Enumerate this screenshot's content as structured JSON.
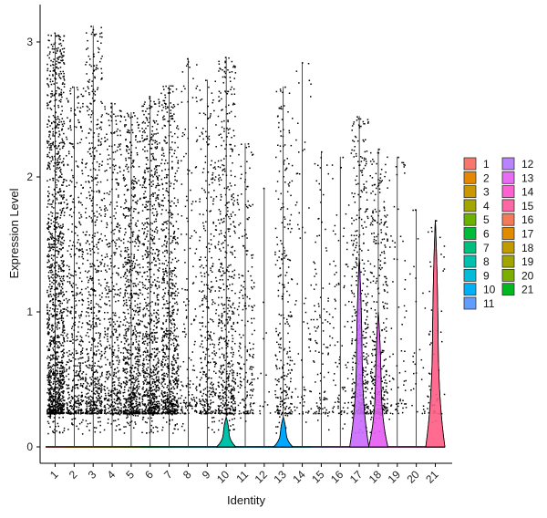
{
  "chart_data": {
    "type": "violin",
    "xlabel": "Identity",
    "ylabel": "Expression Level",
    "categories": [
      "1",
      "2",
      "3",
      "4",
      "5",
      "6",
      "7",
      "8",
      "9",
      "10",
      "11",
      "12",
      "13",
      "14",
      "15",
      "16",
      "17",
      "18",
      "19",
      "20",
      "21"
    ],
    "ylim": [
      -0.1,
      3.22
    ],
    "yticks": [
      0,
      1,
      2,
      3
    ],
    "colors": [
      "#F8766D",
      "#E58700",
      "#C99800",
      "#A3A500",
      "#6BB100",
      "#00BA38",
      "#00BF7D",
      "#00C0AF",
      "#00BCD8",
      "#00B0F6",
      "#619CFF",
      "#B983FF",
      "#E76BF3",
      "#FD61D1",
      "#FF67A4",
      "#F37B59",
      "#E08B00",
      "#C09B00",
      "#9FA600",
      "#7CAE00",
      "#00B81F"
    ],
    "violin_colors": [
      "#F8766D",
      "#E58700",
      "#C99800",
      "#A3A500",
      "#6BB100",
      "#00BA38",
      "#00BF7D",
      "#00C0AF",
      "#00BCD8",
      "#00C1AA",
      "#00B8E7",
      "#00A9FF",
      "#00A9FF",
      "#00BCD8",
      "#8494FF",
      "#C77CFF",
      "#CF78FF",
      "#E76BF3",
      "#FD61D1",
      "#FF62BC",
      "#FF6C90"
    ],
    "max_values": [
      3.07,
      2.67,
      3.12,
      2.55,
      2.48,
      2.6,
      2.68,
      2.88,
      2.72,
      2.89,
      2.25,
      1.92,
      2.67,
      2.85,
      2.19,
      2.15,
      2.45,
      2.21,
      2.15,
      1.76,
      1.68
    ],
    "violin_peak_values": [
      0,
      0,
      0,
      0,
      0,
      0,
      0,
      0,
      0,
      0.22,
      0,
      0,
      0.22,
      0,
      0,
      0,
      1.4,
      1.0,
      0,
      0,
      1.68
    ],
    "point_density": [
      1.0,
      0.35,
      0.45,
      0.35,
      0.55,
      0.6,
      0.55,
      0.12,
      0.25,
      0.4,
      0.15,
      0.01,
      0.2,
      0.05,
      0.08,
      0.06,
      0.3,
      0.25,
      0.05,
      0.02,
      0.04
    ],
    "legend": {
      "placement": "right",
      "labels": [
        "1",
        "2",
        "3",
        "4",
        "5",
        "6",
        "7",
        "8",
        "9",
        "10",
        "11",
        "12",
        "13",
        "14",
        "15",
        "16",
        "17",
        "18",
        "19",
        "20",
        "21"
      ]
    }
  }
}
